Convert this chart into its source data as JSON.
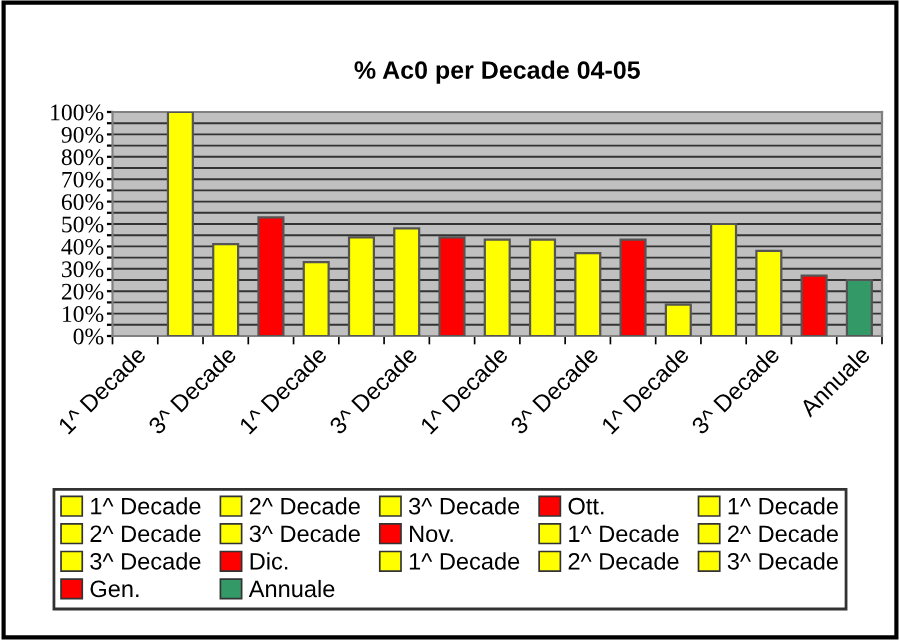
{
  "chart_data": {
    "type": "bar",
    "title": "% Ac0 per Decade 04-05",
    "categories": [
      "1^ Decade",
      null,
      "3^ Decade",
      null,
      "1^ Decade",
      null,
      "3^ Decade",
      null,
      "1^ Decade",
      null,
      "3^ Decade",
      null,
      "1^ Decade",
      null,
      "3^ Decade",
      null,
      "Annuale"
    ],
    "series": [
      {
        "name": "1^ Decade",
        "color": "#ffff00",
        "values": [
          null,
          null,
          null,
          null,
          null,
          null,
          null,
          null,
          null,
          null,
          null,
          null,
          null,
          null,
          null,
          null,
          null
        ]
      },
      {
        "name": "2^ Decade",
        "color": "#ffff00",
        "values": [
          null,
          100,
          null,
          null,
          null,
          null,
          null,
          null,
          null,
          null,
          null,
          null,
          null,
          null,
          null,
          null,
          null
        ]
      },
      {
        "name": "3^ Decade",
        "color": "#ffff00",
        "values": [
          null,
          null,
          41,
          null,
          null,
          null,
          null,
          null,
          null,
          null,
          null,
          null,
          null,
          null,
          null,
          null,
          null
        ]
      },
      {
        "name": "Ott.",
        "color": "#ff0000",
        "values": [
          null,
          null,
          null,
          53,
          null,
          null,
          null,
          null,
          null,
          null,
          null,
          null,
          null,
          null,
          null,
          null,
          null
        ]
      },
      {
        "name": "1^ Decade",
        "color": "#ffff00",
        "values": [
          null,
          null,
          null,
          null,
          33,
          null,
          null,
          null,
          null,
          null,
          null,
          null,
          null,
          null,
          null,
          null,
          null
        ]
      },
      {
        "name": "2^ Decade",
        "color": "#ffff00",
        "values": [
          null,
          null,
          null,
          null,
          null,
          44,
          null,
          null,
          null,
          null,
          null,
          null,
          null,
          null,
          null,
          null,
          null
        ]
      },
      {
        "name": "3^ Decade",
        "color": "#ffff00",
        "values": [
          null,
          null,
          null,
          null,
          null,
          null,
          48,
          null,
          null,
          null,
          null,
          null,
          null,
          null,
          null,
          null,
          null
        ]
      },
      {
        "name": "Nov.",
        "color": "#ff0000",
        "values": [
          null,
          null,
          null,
          null,
          null,
          null,
          null,
          44,
          null,
          null,
          null,
          null,
          null,
          null,
          null,
          null,
          null
        ]
      },
      {
        "name": "1^ Decade",
        "color": "#ffff00",
        "values": [
          null,
          null,
          null,
          null,
          null,
          null,
          null,
          null,
          43,
          null,
          null,
          null,
          null,
          null,
          null,
          null,
          null
        ]
      },
      {
        "name": "2^ Decade",
        "color": "#ffff00",
        "values": [
          null,
          null,
          null,
          null,
          null,
          null,
          null,
          null,
          null,
          43,
          null,
          null,
          null,
          null,
          null,
          null,
          null
        ]
      },
      {
        "name": "3^ Decade",
        "color": "#ffff00",
        "values": [
          null,
          null,
          null,
          null,
          null,
          null,
          null,
          null,
          null,
          null,
          37,
          null,
          null,
          null,
          null,
          null,
          null
        ]
      },
      {
        "name": "Dic.",
        "color": "#ff0000",
        "values": [
          null,
          null,
          null,
          null,
          null,
          null,
          null,
          null,
          null,
          null,
          null,
          43,
          null,
          null,
          null,
          null,
          null
        ]
      },
      {
        "name": "1^ Decade",
        "color": "#ffff00",
        "values": [
          null,
          null,
          null,
          null,
          null,
          null,
          null,
          null,
          null,
          null,
          null,
          null,
          14,
          null,
          null,
          null,
          null
        ]
      },
      {
        "name": "2^ Decade",
        "color": "#ffff00",
        "values": [
          null,
          null,
          null,
          null,
          null,
          null,
          null,
          null,
          null,
          null,
          null,
          null,
          null,
          50,
          null,
          null,
          null
        ]
      },
      {
        "name": "3^ Decade",
        "color": "#ffff00",
        "values": [
          null,
          null,
          null,
          null,
          null,
          null,
          null,
          null,
          null,
          null,
          null,
          null,
          null,
          null,
          38,
          null,
          null
        ]
      },
      {
        "name": "Gen.",
        "color": "#ff0000",
        "values": [
          null,
          null,
          null,
          null,
          null,
          null,
          null,
          null,
          null,
          null,
          null,
          null,
          null,
          null,
          null,
          27,
          null
        ]
      },
      {
        "name": "Annuale",
        "color": "#339966",
        "values": [
          null,
          null,
          null,
          null,
          null,
          null,
          null,
          null,
          null,
          null,
          null,
          null,
          null,
          null,
          null,
          null,
          25
        ]
      }
    ],
    "ylim": [
      0,
      100
    ],
    "yticks": [
      {
        "value": 0,
        "label": "0%"
      },
      {
        "value": 5,
        "label": null
      },
      {
        "value": 10,
        "label": "10%"
      },
      {
        "value": 15,
        "label": null
      },
      {
        "value": 20,
        "label": "20%"
      },
      {
        "value": 25,
        "label": null
      },
      {
        "value": 30,
        "label": "30%"
      },
      {
        "value": 35,
        "label": null
      },
      {
        "value": 40,
        "label": "40%"
      },
      {
        "value": 45,
        "label": null
      },
      {
        "value": 50,
        "label": "50%"
      },
      {
        "value": 55,
        "label": null
      },
      {
        "value": 60,
        "label": "60%"
      },
      {
        "value": 65,
        "label": null
      },
      {
        "value": 70,
        "label": "70%"
      },
      {
        "value": 75,
        "label": null
      },
      {
        "value": 80,
        "label": "80%"
      },
      {
        "value": 85,
        "label": null
      },
      {
        "value": 90,
        "label": "90%"
      },
      {
        "value": 95,
        "label": null
      },
      {
        "value": 100,
        "label": "100%"
      }
    ],
    "grid": "y",
    "legend": "bottom"
  }
}
